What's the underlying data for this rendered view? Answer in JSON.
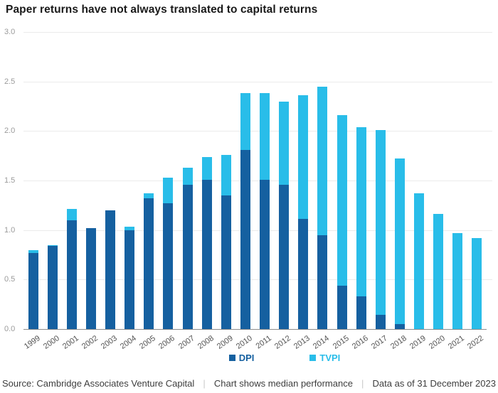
{
  "title": "Paper returns have not always translated to capital returns",
  "chart_data": {
    "type": "bar",
    "stacked": true,
    "title": "Paper returns have not always translated to capital returns",
    "categories": [
      "1999",
      "2000",
      "2001",
      "2002",
      "2003",
      "2004",
      "2005",
      "2006",
      "2007",
      "2008",
      "2009",
      "2010",
      "2011",
      "2012",
      "2013",
      "2014",
      "2015",
      "2016",
      "2017",
      "2018",
      "2019",
      "2020",
      "2021",
      "2022"
    ],
    "series": [
      {
        "name": "DPI",
        "color": "#1560a0",
        "values": [
          0.77,
          0.84,
          1.1,
          1.02,
          1.2,
          1.0,
          1.32,
          1.27,
          1.46,
          1.51,
          1.35,
          1.81,
          1.51,
          1.46,
          1.11,
          0.95,
          0.44,
          0.33,
          0.14,
          0.05,
          0.0,
          0.0,
          0.0,
          0.0
        ]
      },
      {
        "name": "TVPI",
        "color": "#29bde9",
        "values": [
          0.8,
          0.85,
          1.21,
          1.02,
          1.2,
          1.03,
          1.37,
          1.53,
          1.63,
          1.74,
          1.76,
          2.38,
          2.38,
          2.3,
          2.36,
          2.45,
          2.16,
          2.04,
          2.01,
          1.72,
          1.37,
          1.16,
          0.97,
          0.92
        ]
      }
    ],
    "series_note": "TVPI values are total bar heights; DPI is the dark segment drawn from the baseline within each bar",
    "xlabel": "",
    "ylabel": "",
    "ylim": [
      0,
      3.0
    ],
    "yticks": [
      0.0,
      0.5,
      1.0,
      1.5,
      2.0,
      2.5,
      3.0
    ],
    "grid": "horizontal",
    "legend_position": "bottom"
  },
  "axis": {
    "y_tick_labels": [
      "0.0",
      "0.5",
      "1.0",
      "1.5",
      "2.0",
      "2.5",
      "3.0"
    ]
  },
  "legend": {
    "items": [
      {
        "label": "DPI",
        "color": "#1560a0"
      },
      {
        "label": "TVPI",
        "color": "#29bde9"
      }
    ]
  },
  "footer": {
    "source": "Source: Cambridge Associates Venture Capital",
    "note": "Chart shows median performance",
    "as_of": "Data as of 31 December 2023",
    "separator": "|"
  },
  "colors": {
    "dpi": "#1560a0",
    "tvpi": "#29bde9",
    "gridline": "#ebebeb",
    "axis_line": "#8c8c8c",
    "y_tick_text": "#9b9b9b",
    "x_tick_text": "#525252",
    "title_text": "#1a1a1a",
    "footer_text": "#3d3d3d",
    "footer_pipe": "#c9c9c9"
  }
}
